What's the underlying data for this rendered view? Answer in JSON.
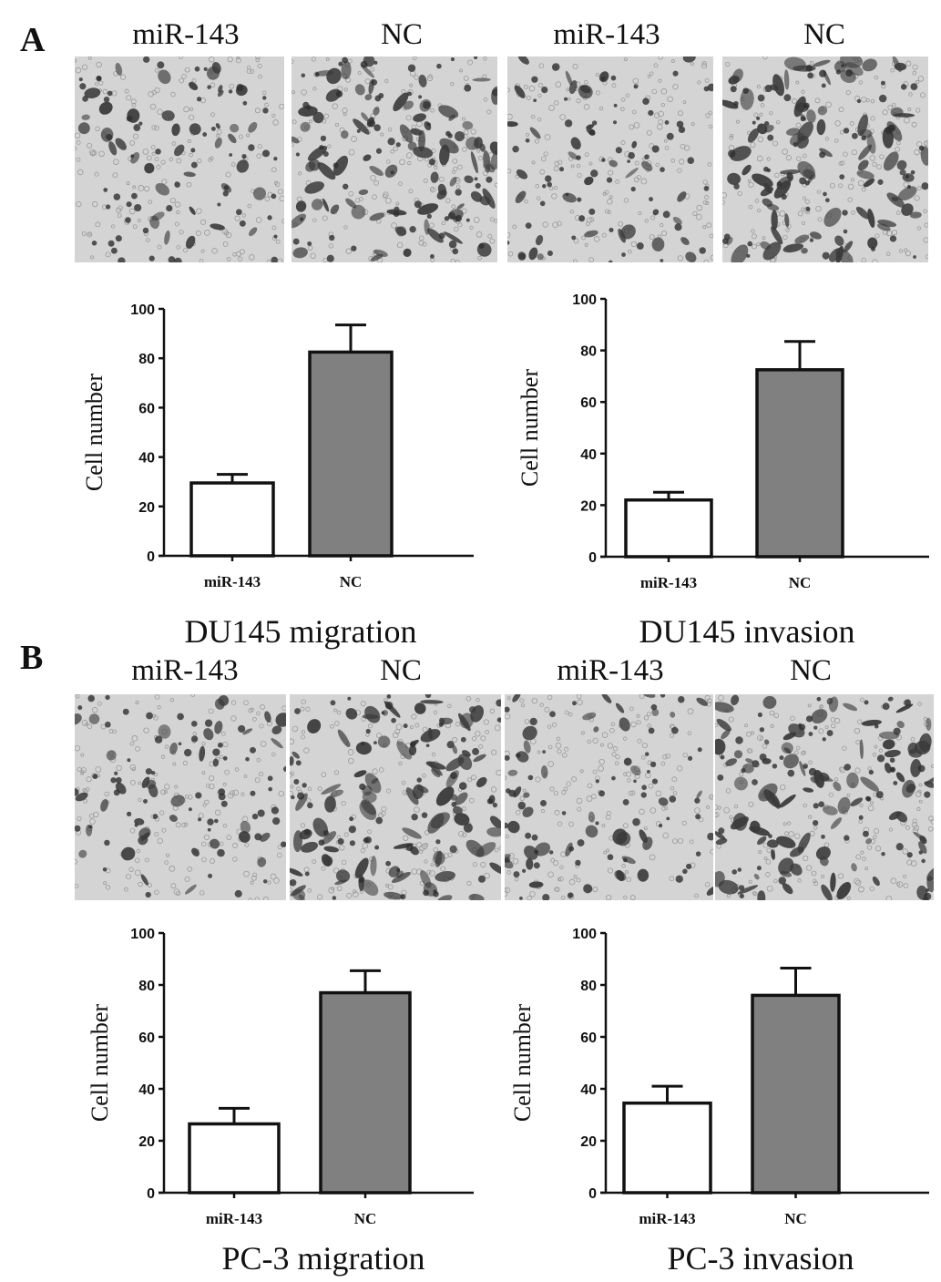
{
  "panel_a": {
    "letter": "A",
    "image_labels": [
      "miR-143",
      "NC",
      "miR-143",
      "NC"
    ],
    "captions": [
      "DU145 migration",
      "DU145 invasion"
    ]
  },
  "panel_b": {
    "letter": "B",
    "image_labels": [
      "miR-143",
      "NC",
      "miR-143",
      "NC"
    ],
    "captions": [
      "PC-3 migration",
      "PC-3 invasion"
    ]
  },
  "colors": {
    "mir143_bar": "#ffffff",
    "nc_bar": "#808080",
    "axis": "#111111",
    "micrograph_bg": "#d4d4d4",
    "cell": "#3a3a3a"
  },
  "chart_data": [
    {
      "type": "bar",
      "categories": [
        "miR-143",
        "NC"
      ],
      "values": [
        29.5,
        82.5
      ],
      "error": [
        3.5,
        11
      ],
      "ylabel": "Cell number",
      "yticks": [
        0,
        20,
        40,
        60,
        80,
        100
      ],
      "ylim": [
        0,
        100
      ],
      "caption": "DU145 migration"
    },
    {
      "type": "bar",
      "categories": [
        "miR-143",
        "NC"
      ],
      "values": [
        22,
        72.5
      ],
      "error": [
        3,
        11
      ],
      "ylabel": "Cell number",
      "yticks": [
        0,
        20,
        40,
        60,
        80,
        100
      ],
      "ylim": [
        0,
        100
      ],
      "caption": "DU145 invasion"
    },
    {
      "type": "bar",
      "categories": [
        "miR-143",
        "NC"
      ],
      "values": [
        26.5,
        77
      ],
      "error": [
        6,
        8.5
      ],
      "ylabel": "Cell number",
      "yticks": [
        0,
        20,
        40,
        60,
        80,
        100
      ],
      "ylim": [
        0,
        100
      ],
      "caption": "PC-3 migration"
    },
    {
      "type": "bar",
      "categories": [
        "miR-143",
        "NC"
      ],
      "values": [
        34.5,
        76
      ],
      "error": [
        6.5,
        10.5
      ],
      "ylabel": "Cell number",
      "yticks": [
        0,
        20,
        40,
        60,
        80,
        100
      ],
      "ylim": [
        0,
        100
      ],
      "caption": "PC-3 invasion"
    }
  ]
}
